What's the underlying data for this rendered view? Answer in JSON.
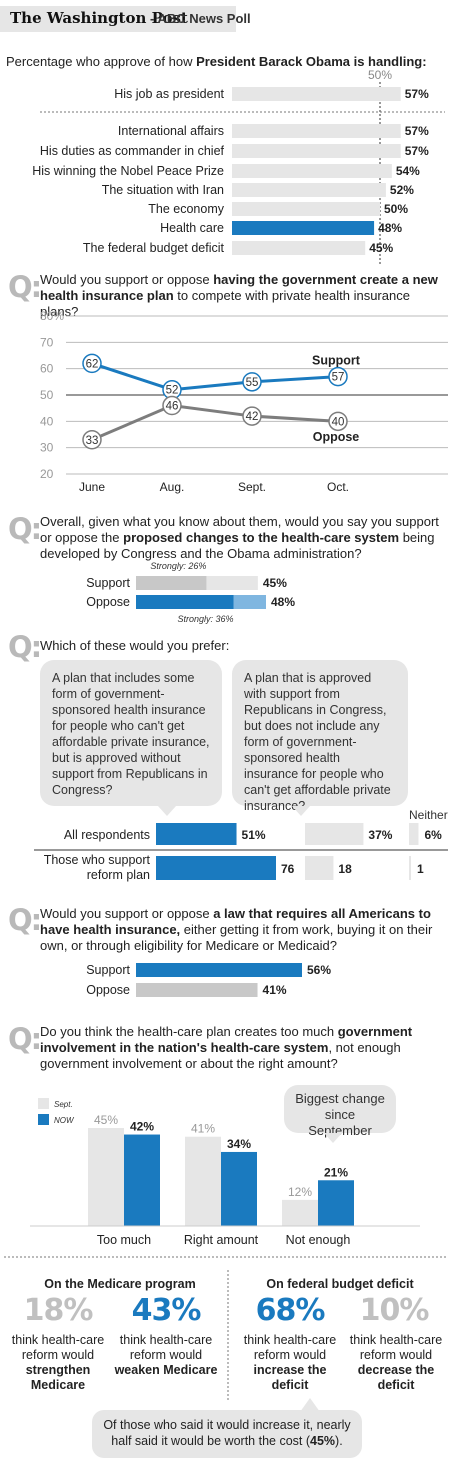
{
  "header": {
    "logo": "The Washington Post",
    "suffix": "- ABC News Poll"
  },
  "colors": {
    "blue": "#1a7abf",
    "lightblue": "#7fb6e0",
    "gray": "#c8c8c8",
    "lightgray": "#e6e6e6",
    "darkgray": "#7d7d7d"
  },
  "chart_data": [
    {
      "type": "bar",
      "title_prefix": "Percentage who approve of how ",
      "title_bold": "President Barack Obama is handling:",
      "reference_label": "50%",
      "categories": [
        "His job as president",
        "International affairs",
        "His duties as commander in chief",
        "His winning the Nobel Peace Prize",
        "The situation with Iran",
        "The economy",
        "Health care",
        "The federal budget deficit"
      ],
      "values": [
        57,
        57,
        57,
        54,
        52,
        50,
        48,
        45
      ],
      "labels": [
        "57%",
        "57%",
        "57%",
        "54%",
        "52%",
        "50%",
        "48%",
        "45%"
      ],
      "highlight": "Health care"
    },
    {
      "type": "line",
      "question_pre": "Would you support or oppose ",
      "question_bold": "having the government create a new health insurance plan",
      "question_post": " to compete with private health insurance plans?",
      "x": [
        "June",
        "Aug.",
        "Sept.",
        "Oct."
      ],
      "series": [
        {
          "name": "Support",
          "values": [
            62,
            52,
            55,
            57
          ]
        },
        {
          "name": "Oppose",
          "values": [
            33,
            46,
            42,
            40
          ]
        }
      ],
      "ylim": [
        20,
        80
      ],
      "yticks": [
        "20",
        "30",
        "40",
        "50",
        "60",
        "70",
        "80%"
      ]
    },
    {
      "type": "bar",
      "question_pre": "Overall, given what you know about them, would you say you support or oppose the ",
      "question_bold": "proposed changes to the health-care system",
      "question_post": " being developed by Congress and the Obama administration?",
      "categories": [
        "Support",
        "Oppose"
      ],
      "values": [
        45,
        48
      ],
      "labels": [
        "45%",
        "48%"
      ],
      "strongly": [
        26,
        36
      ],
      "strongly_labels": [
        "Strongly: 26%",
        "Strongly: 36%"
      ]
    },
    {
      "type": "bar",
      "question": "Which of these would you prefer:",
      "option_a": "A plan that includes some form of government-sponsored health insurance for people who can't get affordable private insurance, but is approved without support from Republicans in Congress?",
      "option_b": "A plan that is approved with support from Republicans in Congress, but does not include any form of government-sponsored health insurance for people who can't get affordable private insurance?",
      "neither_label": "Neither",
      "rows": [
        {
          "name": "All respondents",
          "values": [
            51,
            37,
            6
          ],
          "labels": [
            "51%",
            "37%",
            "6%"
          ]
        },
        {
          "name": "Those who support reform plan",
          "values": [
            76,
            18,
            1
          ],
          "labels": [
            "76",
            "18",
            "1"
          ]
        }
      ]
    },
    {
      "type": "bar",
      "question_bold1": "a law that requires all Americans to have health insurance,",
      "question_pre": "Would you support or oppose ",
      "question_post": " either getting it from work, buying it on their own, or through eligibility for Medicare or Medicaid?",
      "categories": [
        "Support",
        "Oppose"
      ],
      "values": [
        56,
        41
      ],
      "labels": [
        "56%",
        "41%"
      ]
    },
    {
      "type": "bar",
      "question_pre": "Do you think the health-care plan creates too much ",
      "question_bold": "government involvement in the nation's health-care system",
      "question_post": ", not enough government involvement or about the right amount?",
      "categories": [
        "Too much",
        "Right amount",
        "Not enough"
      ],
      "series": [
        {
          "name": "Sept.",
          "values": [
            45,
            41,
            12
          ],
          "labels": [
            "45%",
            "41%",
            "12%"
          ]
        },
        {
          "name": "NOW",
          "values": [
            42,
            34,
            21
          ],
          "labels": [
            "42%",
            "34%",
            "21%"
          ]
        }
      ],
      "callout": "Biggest change since September"
    }
  ],
  "medicare": {
    "heading": "On the Medicare program",
    "a_value": "18%",
    "a_pre": "think health-care reform would",
    "a_bold": "strengthen Medicare",
    "b_value": "43%",
    "b_pre": "think health-care reform would",
    "b_bold": "weaken Medicare"
  },
  "deficit": {
    "heading": "On federal budget deficit",
    "a_value": "68%",
    "a_pre": "think health-care reform would",
    "a_bold": "increase the deficit",
    "b_value": "10%",
    "b_pre": "think health-care reform would",
    "b_bold": "decrease the deficit",
    "note_pre": "Of those who said it would increase it, nearly half said it would be worth the cost (",
    "note_bold": "45%",
    "note_post": ")."
  }
}
